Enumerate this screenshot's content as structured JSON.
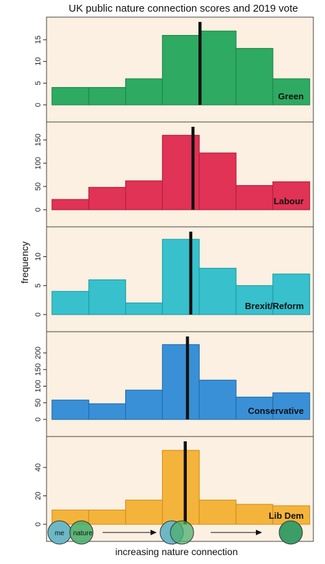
{
  "title": "UK public nature connection scores and 2019 vote",
  "ylabel": "frequency",
  "xlabel": "increasing nature connection",
  "legend_icons": {
    "me_label": "me",
    "nature_label": "nature"
  },
  "colors": {
    "panel_bg": "#fbf0e1",
    "mean_line": "#111111",
    "me_circle": "#6cb8c6",
    "nature_circle": "#4caf6e",
    "overlap_circle": "#3a9e66"
  },
  "chart_data": {
    "type": "bar",
    "title": "UK public nature connection scores and 2019 vote",
    "ylabel": "frequency",
    "xlabel": "increasing nature connection",
    "bins": 7,
    "panels": [
      {
        "name": "Green",
        "color": "#2eaa62",
        "stroke": "#1e8a4a",
        "values": [
          4,
          4,
          6,
          16,
          17,
          13,
          6
        ],
        "ylim": [
          0,
          18
        ],
        "yticks": [
          0,
          5,
          10,
          15
        ],
        "mean_bin": 4.02
      },
      {
        "name": "Labour",
        "color": "#e03355",
        "stroke": "#b81f3e",
        "values": [
          22,
          48,
          62,
          160,
          122,
          52,
          60
        ],
        "ylim": [
          0,
          168
        ],
        "yticks": [
          0,
          50,
          100,
          150
        ],
        "mean_bin": 3.83
      },
      {
        "name": "Brexit/Reform",
        "color": "#38c0cc",
        "stroke": "#1f9faa",
        "values": [
          4,
          6,
          2,
          13,
          8,
          5,
          7
        ],
        "ylim": [
          0,
          13.5
        ],
        "yticks": [
          0,
          5,
          10
        ],
        "mean_bin": 3.77
      },
      {
        "name": "Conservative",
        "color": "#3a90d6",
        "stroke": "#1f6fb5",
        "values": [
          58,
          47,
          88,
          225,
          118,
          67,
          80
        ],
        "ylim": [
          0,
          235
        ],
        "yticks": [
          0,
          50,
          100,
          150,
          200
        ],
        "mean_bin": 3.68
      },
      {
        "name": "Lib Dem",
        "color": "#f4b43c",
        "stroke": "#d4921e",
        "values": [
          10,
          10,
          17,
          52,
          17,
          14,
          13
        ],
        "ylim": [
          0,
          55
        ],
        "yticks": [
          0,
          20,
          40
        ],
        "mean_bin": 3.62
      }
    ]
  }
}
